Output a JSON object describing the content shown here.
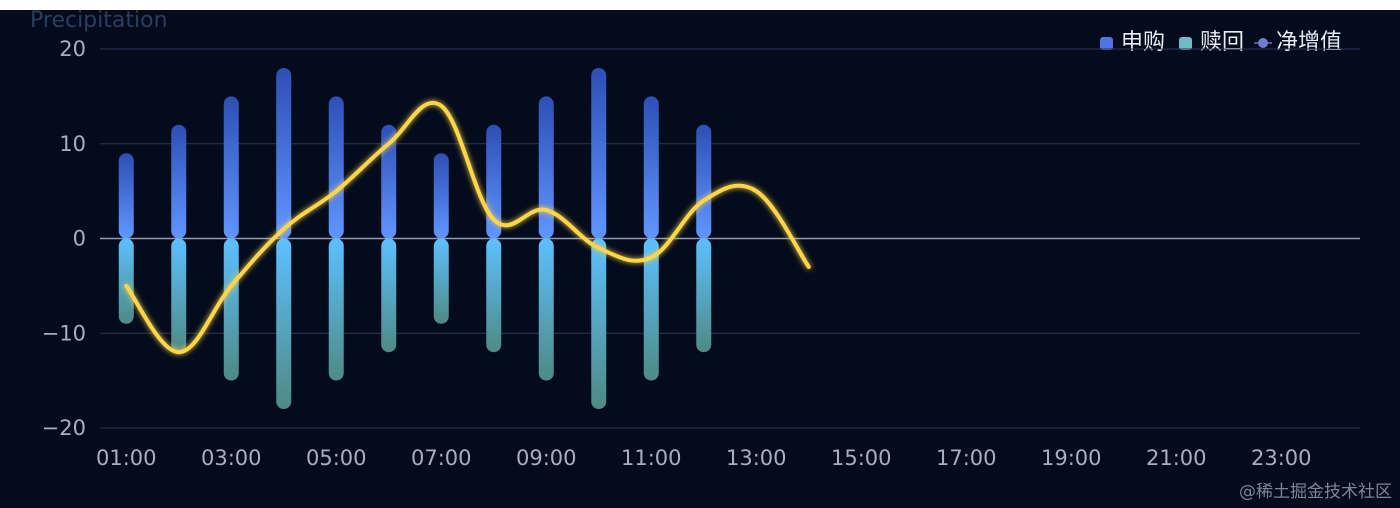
{
  "chart_data": {
    "type": "bar",
    "ylabel": "Precipitation",
    "xlim": [
      0.5,
      24.5
    ],
    "ylim": [
      -20,
      20
    ],
    "y_ticks": [
      "20",
      "10",
      "0",
      "−10",
      "−20"
    ],
    "y_tick_values": [
      20,
      10,
      0,
      -10,
      -20
    ],
    "x_tick_labels": [
      "01:00",
      "03:00",
      "05:00",
      "07:00",
      "09:00",
      "11:00",
      "13:00",
      "15:00",
      "17:00",
      "19:00",
      "21:00",
      "23:00"
    ],
    "x_tick_hours": [
      1,
      3,
      5,
      7,
      9,
      11,
      13,
      15,
      17,
      19,
      21,
      23
    ],
    "grid": true,
    "legend_position": "top-right",
    "series": [
      {
        "name": "申购",
        "kind": "bar",
        "color_top": "#2e4fb5",
        "color_bottom": "#6096ff",
        "x": [
          1,
          2,
          3,
          4,
          5,
          6,
          7,
          8,
          9,
          10,
          11,
          12
        ],
        "values": [
          9,
          12,
          15,
          18,
          15,
          12,
          9,
          12,
          15,
          18,
          15,
          12
        ]
      },
      {
        "name": "赎回",
        "kind": "bar",
        "color_top": "#5cc0ff",
        "color_bottom": "#4f8a84",
        "x": [
          1,
          2,
          3,
          4,
          5,
          6,
          7,
          8,
          9,
          10,
          11,
          12
        ],
        "values": [
          -9,
          -12,
          -15,
          -18,
          -15,
          -12,
          -9,
          -12,
          -15,
          -18,
          -15,
          -12
        ]
      },
      {
        "name": "净增值",
        "kind": "line",
        "color": "#ffd54a",
        "x": [
          1,
          2,
          3,
          4,
          5,
          6,
          7,
          8,
          9,
          10,
          11,
          12,
          13,
          14
        ],
        "values": [
          -5,
          -12,
          -5,
          1,
          5,
          10,
          14,
          2,
          3,
          -1,
          -2,
          4,
          5,
          -3
        ]
      }
    ]
  },
  "legend": {
    "items": [
      {
        "label": "申购",
        "color": "#4f74e3"
      },
      {
        "label": "赎回",
        "color": "#6fbcc4"
      },
      {
        "label": "净增值",
        "color": "#6c7fd1"
      }
    ]
  },
  "watermark": "@稀土掘金技术社区"
}
